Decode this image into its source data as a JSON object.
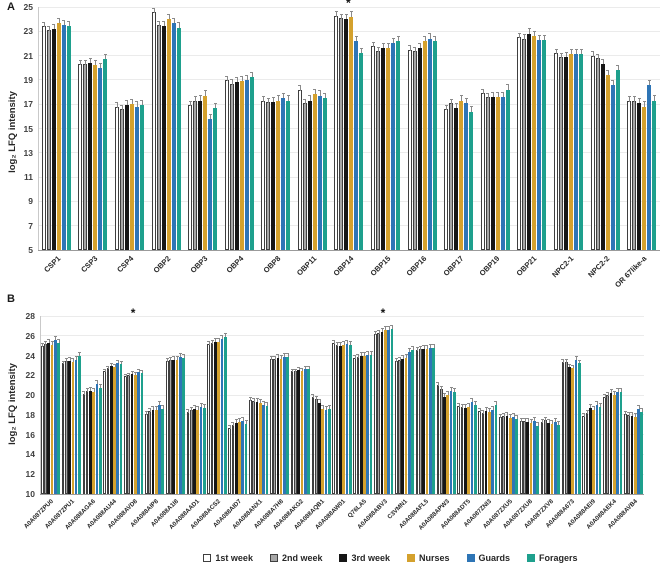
{
  "figure": {
    "panel_a_label": "A",
    "panel_b_label": "B"
  },
  "legend": {
    "items": [
      {
        "label": "1st week",
        "color": "#ffffff",
        "border": "#3f3f3f"
      },
      {
        "label": "2nd week",
        "color": "#a6a6a6",
        "border": "#3f3f3f"
      },
      {
        "label": "3rd week",
        "color": "#161616",
        "border": null
      },
      {
        "label": "Nurses",
        "color": "#d4a12d",
        "border": null
      },
      {
        "label": "Guards",
        "color": "#2e75b6",
        "border": null
      },
      {
        "label": "Foragers",
        "color": "#1ea08d",
        "border": null
      }
    ]
  },
  "chart_data": [
    {
      "type": "bar",
      "panel": "A",
      "ylabel": "log₂ LFQ intensity",
      "xlabel": "",
      "ylim": [
        5,
        25
      ],
      "ytick_step": 2,
      "grid": true,
      "legend_position": "bottom",
      "error_bar": 0.35,
      "asterisk_symbol": "*",
      "asterisks": [
        "OBP14"
      ],
      "categories": [
        "CSP1",
        "CSP3",
        "CSP4",
        "OBP2",
        "OBP3",
        "OBP4",
        "OBP8",
        "OBP11",
        "OBP14",
        "OBP15",
        "OBP16",
        "OBP17",
        "OBP19",
        "OBP21",
        "NPC2-1",
        "NPC2-2",
        "OR 67like-a"
      ],
      "series": [
        {
          "name": "1st week",
          "values": [
            23.4,
            20.3,
            16.8,
            24.6,
            16.9,
            19.0,
            17.3,
            18.2,
            24.3,
            21.8,
            21.5,
            16.6,
            17.9,
            22.5,
            21.2,
            21.0,
            17.3
          ]
        },
        {
          "name": "2nd week",
          "values": [
            23.1,
            20.3,
            16.6,
            23.5,
            17.3,
            18.7,
            17.2,
            17.1,
            24.1,
            21.4,
            21.4,
            17.1,
            17.6,
            22.4,
            20.9,
            20.8,
            17.3
          ]
        },
        {
          "name": "3rd week",
          "values": [
            23.2,
            20.4,
            16.9,
            23.4,
            17.3,
            18.8,
            17.2,
            17.3,
            24.0,
            21.6,
            21.6,
            16.7,
            17.6,
            22.8,
            20.9,
            20.3,
            17.1
          ]
        },
        {
          "name": "Nurses",
          "values": [
            23.7,
            20.2,
            17.0,
            24.0,
            17.7,
            18.9,
            17.3,
            17.8,
            24.2,
            21.6,
            22.2,
            17.3,
            17.6,
            22.6,
            21.1,
            19.4,
            16.8
          ]
        },
        {
          "name": "Guards",
          "values": [
            23.5,
            20.0,
            16.8,
            23.7,
            15.8,
            19.0,
            17.5,
            17.7,
            22.2,
            22.0,
            22.4,
            17.1,
            17.6,
            22.3,
            21.1,
            18.6,
            18.6
          ]
        },
        {
          "name": "Foragers",
          "values": [
            23.4,
            20.7,
            16.9,
            23.3,
            16.7,
            19.2,
            17.3,
            17.5,
            21.2,
            22.2,
            22.2,
            16.4,
            18.2,
            22.3,
            21.1,
            19.8,
            17.3
          ]
        }
      ]
    },
    {
      "type": "bar",
      "panel": "B",
      "ylabel": "log₂ LFQ intensity",
      "xlabel": "",
      "ylim": [
        10,
        28
      ],
      "ytick_step": 2,
      "grid": true,
      "legend_position": "bottom",
      "error_bar": 0.28,
      "asterisk_symbol": "*",
      "asterisks": [
        "A0A088AVD8",
        "A0A088ABV3"
      ],
      "categories": [
        "A0A087ZPU0",
        "A0A087ZPU1",
        "A0A088AGA6",
        "A0A088AU44",
        "A0A088AVD8",
        "A0A088AIP8",
        "A0A088A1I8",
        "A0A088AAD1",
        "A0A088ACS2",
        "A0A088AID7",
        "A0A088ANX1",
        "A0A088A7H8",
        "A0A088AKG2",
        "A0A088AQB1",
        "A0A088AW01",
        "Q76LA5",
        "A0A088ABV3",
        "C3VMN1",
        "A0A088AFL5",
        "A0A088APW3",
        "A0A088ADT5",
        "A0A087ZNI3",
        "A0A087ZXU5",
        "A0A087ZXU8",
        "A0A087ZXV8",
        "A0A088A673",
        "A0A088AEI9",
        "A0A088AEK4",
        "A0A088AVB4"
      ],
      "series": [
        {
          "name": "1st week",
          "values": [
            25.0,
            23.2,
            20.1,
            22.4,
            21.9,
            18.1,
            23.5,
            18.3,
            25.2,
            16.7,
            19.5,
            23.7,
            22.4,
            19.8,
            25.3,
            23.8,
            26.2,
            23.5,
            24.6,
            21.0,
            18.9,
            18.4,
            17.8,
            17.4,
            17.3,
            23.4,
            17.9,
            19.8,
            18.1
          ]
        },
        {
          "name": "2nd week",
          "values": [
            25.2,
            23.5,
            20.4,
            22.7,
            22.0,
            18.4,
            23.6,
            18.5,
            25.3,
            17.0,
            19.4,
            23.7,
            22.4,
            19.6,
            25.1,
            23.9,
            26.3,
            23.6,
            24.7,
            20.6,
            18.8,
            18.2,
            17.9,
            17.4,
            17.5,
            23.4,
            18.2,
            20.0,
            18.0
          ]
        },
        {
          "name": "3rd week",
          "values": [
            25.3,
            23.5,
            20.4,
            22.9,
            22.1,
            18.5,
            23.6,
            18.6,
            25.4,
            17.2,
            19.3,
            23.8,
            22.5,
            19.2,
            25.0,
            24.0,
            26.4,
            23.7,
            24.7,
            19.8,
            18.7,
            18.4,
            17.9,
            17.3,
            17.2,
            22.8,
            18.7,
            20.2,
            17.9
          ]
        },
        {
          "name": "Nurses",
          "values": [
            25.1,
            23.4,
            20.3,
            22.8,
            22.0,
            18.5,
            23.6,
            18.5,
            25.4,
            17.3,
            19.2,
            23.7,
            22.4,
            18.6,
            25.1,
            24.0,
            26.6,
            23.8,
            24.7,
            20.0,
            18.8,
            18.3,
            17.7,
            17.2,
            17.1,
            22.7,
            18.5,
            20.0,
            17.8
          ]
        },
        {
          "name": "Guards",
          "values": [
            25.6,
            23.6,
            21.1,
            23.2,
            22.3,
            19.0,
            23.9,
            18.8,
            25.7,
            17.4,
            19.0,
            23.9,
            22.6,
            18.5,
            25.2,
            24.1,
            26.6,
            24.4,
            24.8,
            20.4,
            19.3,
            18.5,
            17.8,
            17.4,
            17.3,
            23.6,
            19.0,
            20.3,
            18.6
          ]
        },
        {
          "name": "Foragers",
          "values": [
            25.3,
            24.0,
            20.7,
            23.1,
            22.2,
            18.6,
            23.8,
            18.7,
            25.9,
            17.1,
            18.9,
            23.9,
            22.6,
            18.6,
            25.1,
            24.1,
            26.7,
            24.6,
            24.8,
            20.3,
            19.0,
            19.0,
            17.6,
            16.9,
            17.0,
            23.2,
            18.8,
            20.3,
            18.3
          ]
        }
      ]
    }
  ]
}
